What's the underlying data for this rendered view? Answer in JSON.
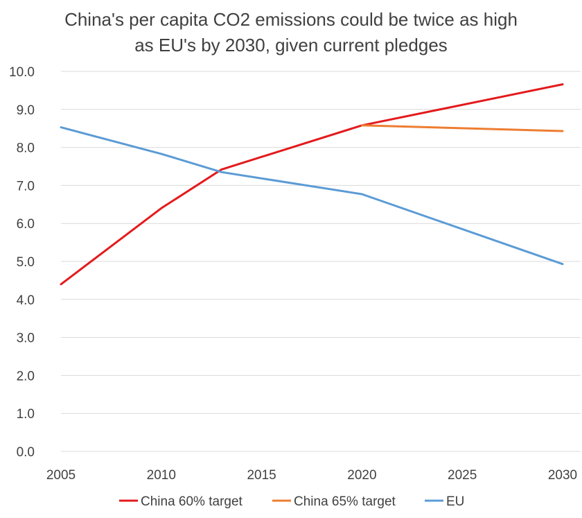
{
  "chart_data": {
    "type": "line",
    "title_lines": [
      "China's per capita CO2 emissions could be twice as high",
      "as EU's by 2030, given current pledges"
    ],
    "xlabel": "",
    "ylabel": "",
    "x_ticks": [
      "2005",
      "2010",
      "2015",
      "2020",
      "2025",
      "2030"
    ],
    "y_ticks": [
      "0.0",
      "1.0",
      "2.0",
      "3.0",
      "4.0",
      "5.0",
      "6.0",
      "7.0",
      "8.0",
      "9.0",
      "10.0"
    ],
    "xlim": [
      2005,
      2030
    ],
    "ylim": [
      0,
      10
    ],
    "grid": "horizontal",
    "legend_position": "bottom",
    "series": [
      {
        "name": "China 60% target",
        "color": "#e31a1c",
        "points": [
          [
            2005,
            4.4
          ],
          [
            2010,
            6.4
          ],
          [
            2013,
            7.42
          ],
          [
            2020,
            8.58
          ],
          [
            2030,
            9.66
          ]
        ]
      },
      {
        "name": "China 65% target",
        "color": "#ed7d31",
        "points": [
          [
            2020,
            8.58
          ],
          [
            2030,
            8.43
          ]
        ]
      },
      {
        "name": "EU",
        "color": "#5b9bd5",
        "points": [
          [
            2005,
            8.53
          ],
          [
            2010,
            7.83
          ],
          [
            2013,
            7.35
          ],
          [
            2020,
            6.77
          ],
          [
            2030,
            4.93
          ]
        ]
      }
    ]
  }
}
